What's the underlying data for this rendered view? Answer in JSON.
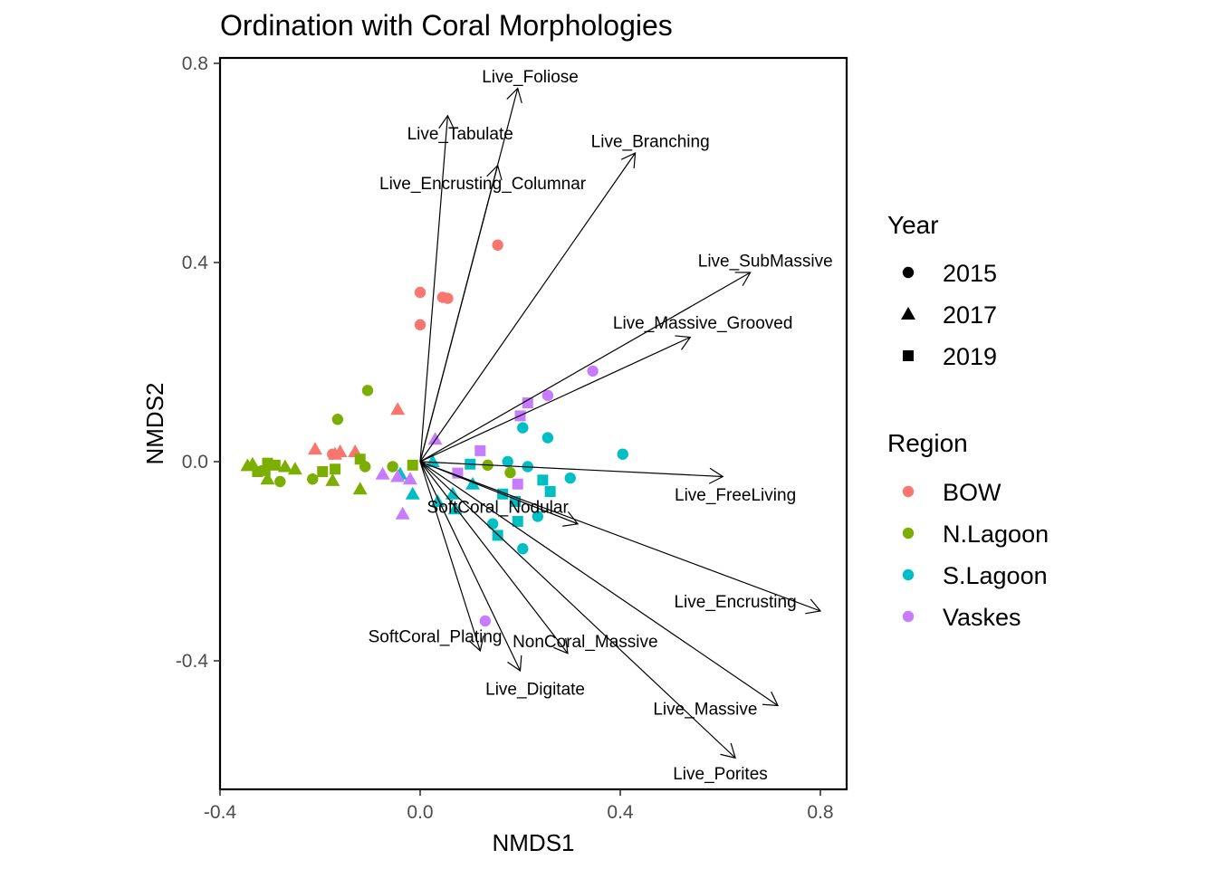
{
  "chart_data": {
    "type": "scatter",
    "title": "Ordination with Coral Morphologies",
    "xlabel": "NMDS1",
    "ylabel": "NMDS2",
    "xlim": [
      -0.4,
      0.85
    ],
    "ylim": [
      -0.65,
      0.81
    ],
    "x_ticks": [
      -0.4,
      0.0,
      0.4,
      0.8
    ],
    "x_tick_labels": [
      "-0.4",
      "0.0",
      "0.4",
      "0.8"
    ],
    "y_ticks": [
      -0.4,
      0.0,
      0.4,
      0.8
    ],
    "y_tick_labels": [
      "-0.4",
      "0.0",
      "0.4",
      "0.8"
    ],
    "grid": false,
    "legend_position": "right",
    "legend": {
      "year_title": "Year",
      "years": [
        {
          "label": "2015",
          "shape": "circle"
        },
        {
          "label": "2017",
          "shape": "triangle"
        },
        {
          "label": "2019",
          "shape": "square"
        }
      ],
      "region_title": "Region",
      "regions": [
        {
          "label": "BOW",
          "color": "#F8766D"
        },
        {
          "label": "N.Lagoon",
          "color": "#7CAE00"
        },
        {
          "label": "S.Lagoon",
          "color": "#00BFC4"
        },
        {
          "label": "Vaskes",
          "color": "#C77CFF"
        }
      ]
    },
    "vectors": [
      {
        "name": "Live_Foliose",
        "x": 0.195,
        "y": 0.75,
        "label_x": 0.22,
        "label_y": 0.775
      },
      {
        "name": "Live_Tabulate",
        "x": 0.055,
        "y": 0.695,
        "label_x": 0.08,
        "label_y": 0.66
      },
      {
        "name": "Live_Encrusting_Columnar",
        "x": 0.155,
        "y": 0.595,
        "label_x": 0.125,
        "label_y": 0.56
      },
      {
        "name": "Live_Branching",
        "x": 0.43,
        "y": 0.62,
        "label_x": 0.46,
        "label_y": 0.645
      },
      {
        "name": "Live_SubMassive",
        "x": 0.66,
        "y": 0.38,
        "label_x": 0.69,
        "label_y": 0.405
      },
      {
        "name": "Live_Massive_Grooved",
        "x": 0.54,
        "y": 0.25,
        "label_x": 0.565,
        "label_y": 0.28
      },
      {
        "name": "Live_FreeLiving",
        "x": 0.605,
        "y": -0.03,
        "label_x": 0.63,
        "label_y": -0.065
      },
      {
        "name": "SoftCoral_Nodular",
        "x": 0.315,
        "y": -0.125,
        "label_x": 0.155,
        "label_y": -0.09
      },
      {
        "name": "Live_Encrusting",
        "x": 0.8,
        "y": -0.3,
        "label_x": 0.63,
        "label_y": -0.28
      },
      {
        "name": "Live_Massive",
        "x": 0.715,
        "y": -0.49,
        "label_x": 0.57,
        "label_y": -0.495
      },
      {
        "name": "Live_Porites",
        "x": 0.63,
        "y": -0.595,
        "label_x": 0.6,
        "label_y": -0.625
      },
      {
        "name": "NonCoral_Massive",
        "x": 0.295,
        "y": -0.385,
        "label_x": 0.33,
        "label_y": -0.36
      },
      {
        "name": "SoftCoral_Plating",
        "x": 0.12,
        "y": -0.38,
        "label_x": 0.03,
        "label_y": -0.35
      },
      {
        "name": "Live_Digitate",
        "x": 0.2,
        "y": -0.42,
        "label_x": 0.23,
        "label_y": -0.455
      }
    ],
    "points": [
      {
        "x": 0.155,
        "y": 0.435,
        "region": "BOW",
        "year": "2015"
      },
      {
        "x": 0.0,
        "y": 0.34,
        "region": "BOW",
        "year": "2015"
      },
      {
        "x": 0.045,
        "y": 0.33,
        "region": "BOW",
        "year": "2015"
      },
      {
        "x": 0.055,
        "y": 0.328,
        "region": "BOW",
        "year": "2015"
      },
      {
        "x": 0.0,
        "y": 0.275,
        "region": "BOW",
        "year": "2015"
      },
      {
        "x": -0.045,
        "y": 0.105,
        "region": "BOW",
        "year": "2017"
      },
      {
        "x": -0.21,
        "y": 0.025,
        "region": "BOW",
        "year": "2017"
      },
      {
        "x": -0.17,
        "y": 0.015,
        "region": "BOW",
        "year": "2017"
      },
      {
        "x": -0.16,
        "y": 0.02,
        "region": "BOW",
        "year": "2017"
      },
      {
        "x": -0.13,
        "y": 0.02,
        "region": "BOW",
        "year": "2017"
      },
      {
        "x": -0.175,
        "y": 0.015,
        "region": "BOW",
        "year": "2015"
      },
      {
        "x": -0.105,
        "y": 0.143,
        "region": "N.Lagoon",
        "year": "2015"
      },
      {
        "x": -0.165,
        "y": 0.085,
        "region": "N.Lagoon",
        "year": "2015"
      },
      {
        "x": -0.11,
        "y": -0.01,
        "region": "N.Lagoon",
        "year": "2015"
      },
      {
        "x": -0.055,
        "y": -0.01,
        "region": "N.Lagoon",
        "year": "2015"
      },
      {
        "x": -0.215,
        "y": -0.035,
        "region": "N.Lagoon",
        "year": "2015"
      },
      {
        "x": -0.28,
        "y": -0.04,
        "region": "N.Lagoon",
        "year": "2015"
      },
      {
        "x": 0.135,
        "y": -0.007,
        "region": "N.Lagoon",
        "year": "2015"
      },
      {
        "x": 0.18,
        "y": -0.022,
        "region": "N.Lagoon",
        "year": "2015"
      },
      {
        "x": -0.12,
        "y": 0.005,
        "region": "N.Lagoon",
        "year": "2019"
      },
      {
        "x": -0.015,
        "y": -0.007,
        "region": "N.Lagoon",
        "year": "2019"
      },
      {
        "x": -0.305,
        "y": -0.003,
        "region": "N.Lagoon",
        "year": "2019"
      },
      {
        "x": -0.29,
        "y": -0.007,
        "region": "N.Lagoon",
        "year": "2019"
      },
      {
        "x": -0.325,
        "y": -0.02,
        "region": "N.Lagoon",
        "year": "2019"
      },
      {
        "x": -0.31,
        "y": -0.018,
        "region": "N.Lagoon",
        "year": "2019"
      },
      {
        "x": -0.195,
        "y": -0.02,
        "region": "N.Lagoon",
        "year": "2019"
      },
      {
        "x": -0.17,
        "y": -0.015,
        "region": "N.Lagoon",
        "year": "2019"
      },
      {
        "x": -0.345,
        "y": -0.008,
        "region": "N.Lagoon",
        "year": "2017"
      },
      {
        "x": -0.335,
        "y": -0.005,
        "region": "N.Lagoon",
        "year": "2017"
      },
      {
        "x": -0.27,
        "y": -0.01,
        "region": "N.Lagoon",
        "year": "2017"
      },
      {
        "x": -0.25,
        "y": -0.015,
        "region": "N.Lagoon",
        "year": "2017"
      },
      {
        "x": -0.305,
        "y": -0.035,
        "region": "N.Lagoon",
        "year": "2017"
      },
      {
        "x": -0.175,
        "y": -0.038,
        "region": "N.Lagoon",
        "year": "2017"
      },
      {
        "x": -0.12,
        "y": -0.055,
        "region": "N.Lagoon",
        "year": "2017"
      },
      {
        "x": 0.405,
        "y": 0.015,
        "region": "S.Lagoon",
        "year": "2015"
      },
      {
        "x": 0.255,
        "y": 0.048,
        "region": "S.Lagoon",
        "year": "2015"
      },
      {
        "x": 0.205,
        "y": 0.068,
        "region": "S.Lagoon",
        "year": "2015"
      },
      {
        "x": 0.175,
        "y": 0.0,
        "region": "S.Lagoon",
        "year": "2015"
      },
      {
        "x": 0.215,
        "y": -0.01,
        "region": "S.Lagoon",
        "year": "2015"
      },
      {
        "x": 0.3,
        "y": -0.033,
        "region": "S.Lagoon",
        "year": "2015"
      },
      {
        "x": 0.235,
        "y": -0.11,
        "region": "S.Lagoon",
        "year": "2015"
      },
      {
        "x": 0.145,
        "y": -0.125,
        "region": "S.Lagoon",
        "year": "2015"
      },
      {
        "x": 0.205,
        "y": -0.175,
        "region": "S.Lagoon",
        "year": "2015"
      },
      {
        "x": 0.1,
        "y": -0.005,
        "region": "S.Lagoon",
        "year": "2019"
      },
      {
        "x": 0.245,
        "y": -0.037,
        "region": "S.Lagoon",
        "year": "2019"
      },
      {
        "x": 0.26,
        "y": -0.06,
        "region": "S.Lagoon",
        "year": "2019"
      },
      {
        "x": 0.165,
        "y": -0.065,
        "region": "S.Lagoon",
        "year": "2019"
      },
      {
        "x": 0.19,
        "y": -0.08,
        "region": "S.Lagoon",
        "year": "2019"
      },
      {
        "x": 0.195,
        "y": -0.12,
        "region": "S.Lagoon",
        "year": "2019"
      },
      {
        "x": 0.155,
        "y": -0.148,
        "region": "S.Lagoon",
        "year": "2019"
      },
      {
        "x": 0.025,
        "y": 0.0,
        "region": "S.Lagoon",
        "year": "2017"
      },
      {
        "x": -0.04,
        "y": -0.025,
        "region": "S.Lagoon",
        "year": "2017"
      },
      {
        "x": 0.105,
        "y": -0.045,
        "region": "S.Lagoon",
        "year": "2017"
      },
      {
        "x": 0.065,
        "y": -0.065,
        "region": "S.Lagoon",
        "year": "2017"
      },
      {
        "x": -0.015,
        "y": -0.065,
        "region": "S.Lagoon",
        "year": "2017"
      },
      {
        "x": 0.035,
        "y": -0.08,
        "region": "S.Lagoon",
        "year": "2017"
      },
      {
        "x": 0.07,
        "y": -0.095,
        "region": "S.Lagoon",
        "year": "2017"
      },
      {
        "x": 0.345,
        "y": 0.182,
        "region": "Vaskes",
        "year": "2015"
      },
      {
        "x": 0.255,
        "y": 0.133,
        "region": "Vaskes",
        "year": "2015"
      },
      {
        "x": 0.13,
        "y": -0.32,
        "region": "Vaskes",
        "year": "2015"
      },
      {
        "x": 0.215,
        "y": 0.118,
        "region": "Vaskes",
        "year": "2019"
      },
      {
        "x": 0.2,
        "y": 0.092,
        "region": "Vaskes",
        "year": "2019"
      },
      {
        "x": 0.12,
        "y": 0.022,
        "region": "Vaskes",
        "year": "2019"
      },
      {
        "x": 0.075,
        "y": -0.023,
        "region": "Vaskes",
        "year": "2019"
      },
      {
        "x": 0.195,
        "y": -0.045,
        "region": "Vaskes",
        "year": "2019"
      },
      {
        "x": 0.03,
        "y": 0.045,
        "region": "Vaskes",
        "year": "2017"
      },
      {
        "x": -0.075,
        "y": -0.025,
        "region": "Vaskes",
        "year": "2017"
      },
      {
        "x": -0.045,
        "y": -0.03,
        "region": "Vaskes",
        "year": "2017"
      },
      {
        "x": -0.02,
        "y": -0.035,
        "region": "Vaskes",
        "year": "2017"
      },
      {
        "x": -0.035,
        "y": -0.105,
        "region": "Vaskes",
        "year": "2017"
      }
    ]
  }
}
